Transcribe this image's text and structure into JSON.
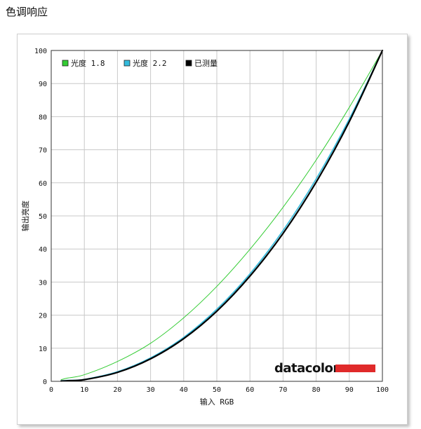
{
  "page": {
    "title": "色调响应"
  },
  "brand": {
    "name": "datacolor",
    "bar_color": "#e02a2a"
  },
  "chart_data": {
    "type": "line",
    "title": "",
    "xlabel": "输入 RGB",
    "ylabel": "输出亮度",
    "xlim": [
      0,
      100
    ],
    "ylim": [
      0,
      100
    ],
    "xticks": [
      0,
      10,
      20,
      30,
      40,
      50,
      60,
      70,
      80,
      90,
      100
    ],
    "yticks": [
      0,
      10,
      20,
      30,
      40,
      50,
      60,
      70,
      80,
      90,
      100
    ],
    "grid": true,
    "legend_position": "top-left",
    "series": [
      {
        "name": "光度 1.8",
        "color": "#33cc33",
        "width": 1,
        "x": [
          3,
          5,
          10,
          20,
          30,
          40,
          50,
          60,
          70,
          80,
          90,
          100
        ],
        "y": [
          0.5,
          1,
          2,
          6,
          11.5,
          19.2,
          28.7,
          39.9,
          52.6,
          66.9,
          82.8,
          100
        ]
      },
      {
        "name": "光度 2.2",
        "color": "#33bbdd",
        "width": 1.6,
        "x": [
          3,
          5,
          10,
          20,
          30,
          40,
          50,
          60,
          70,
          80,
          90,
          100
        ],
        "y": [
          0.2,
          0.3,
          0.6,
          2.9,
          7.1,
          13.3,
          21.8,
          32.5,
          45.6,
          61.2,
          79.3,
          100
        ]
      },
      {
        "name": "已测量",
        "color": "#000000",
        "width": 2.2,
        "x": [
          3,
          5,
          10,
          20,
          30,
          40,
          50,
          60,
          70,
          80,
          90,
          100
        ],
        "y": [
          0.1,
          0.2,
          0.5,
          2.7,
          6.8,
          12.9,
          21.2,
          31.8,
          44.7,
          60.2,
          78.5,
          100
        ]
      }
    ]
  }
}
